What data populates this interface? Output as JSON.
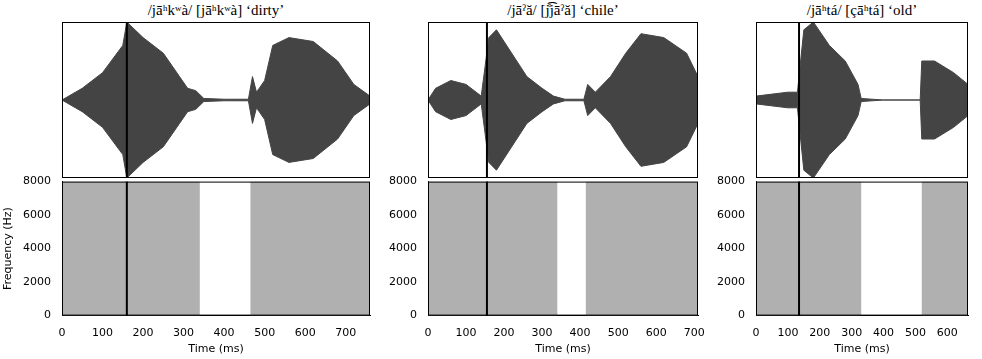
{
  "chart_data": [
    {
      "type": "waveform",
      "title": "/jāʰkʷà/  [jāʰkʷà]  ‘dirty’",
      "x": [
        0,
        50,
        100,
        150,
        160,
        200,
        250,
        290,
        310,
        330,
        350,
        400,
        460,
        470,
        480,
        500,
        520,
        560,
        620,
        680,
        720,
        760
      ],
      "values": [
        0,
        0.15,
        0.35,
        0.7,
        1.0,
        0.8,
        0.6,
        0.3,
        0.15,
        0.12,
        0.02,
        0.01,
        0.01,
        0.3,
        0.1,
        0.25,
        0.7,
        0.8,
        0.75,
        0.5,
        0.2,
        0.05
      ],
      "xlim": [
        0,
        760
      ],
      "ylim": [
        -1,
        1
      ],
      "tick_labels": false,
      "grid": false,
      "color": "#444444"
    },
    {
      "type": "spectrogram",
      "xlabel": "Time (ms)",
      "ylabel": "Frequency (Hz)",
      "xlim": [
        0,
        760
      ],
      "xticks": [
        0,
        100,
        200,
        300,
        400,
        500,
        600,
        700
      ],
      "ylim": [
        0,
        8000
      ],
      "yticks": [
        0,
        2000,
        4000,
        6000,
        8000
      ],
      "intervals": [
        [
          0,
          340
        ],
        [
          465,
          760
        ]
      ],
      "cursor": 160,
      "grid": false,
      "color": "#b0b0b0"
    },
    {
      "type": "waveform",
      "title": "/jāˀă/  [j̊͡jāˀă]  ‘chile’",
      "x": [
        0,
        20,
        60,
        100,
        140,
        160,
        180,
        220,
        260,
        300,
        330,
        360,
        410,
        420,
        440,
        480,
        520,
        560,
        620,
        680,
        710
      ],
      "values": [
        0,
        0.15,
        0.25,
        0.2,
        0.05,
        0.8,
        0.9,
        0.6,
        0.3,
        0.15,
        0.05,
        0.01,
        0.01,
        0.2,
        0.1,
        0.3,
        0.6,
        0.85,
        0.8,
        0.6,
        0.3
      ],
      "xlim": [
        0,
        710
      ],
      "ylim": [
        -1,
        1
      ],
      "tick_labels": false,
      "grid": false,
      "color": "#444444"
    },
    {
      "type": "spectrogram",
      "xlabel": "Time (ms)",
      "xlim": [
        0,
        710
      ],
      "xticks": [
        0,
        100,
        200,
        300,
        400,
        500,
        600,
        700
      ],
      "ylim": [
        0,
        8000
      ],
      "yticks": [
        0,
        2000,
        4000,
        6000,
        8000
      ],
      "intervals": [
        [
          0,
          340
        ],
        [
          415,
          710
        ]
      ],
      "cursor": 155,
      "grid": false,
      "color": "#b0b0b0"
    },
    {
      "type": "waveform",
      "title": "/jāʰtá/  [çāʰtá]  ‘old’",
      "x": [
        0,
        100,
        130,
        150,
        180,
        230,
        280,
        320,
        330,
        400,
        515,
        520,
        560,
        620,
        665
      ],
      "values": [
        0.05,
        0.1,
        0.1,
        0.9,
        1.0,
        0.7,
        0.5,
        0.2,
        0.02,
        0,
        0,
        0.5,
        0.5,
        0.35,
        0.2
      ],
      "xlim": [
        0,
        665
      ],
      "ylim": [
        -1,
        1
      ],
      "tick_labels": false,
      "grid": false,
      "color": "#444444"
    },
    {
      "type": "spectrogram",
      "xlabel": "Time (ms)",
      "xlim": [
        0,
        665
      ],
      "xticks": [
        0,
        100,
        200,
        300,
        400,
        500,
        600
      ],
      "ylim": [
        0,
        8000
      ],
      "yticks": [
        0,
        2000,
        4000,
        6000,
        8000
      ],
      "intervals": [
        [
          0,
          330
        ],
        [
          520,
          665
        ]
      ],
      "cursor": 135,
      "grid": false,
      "color": "#b0b0b0"
    }
  ]
}
